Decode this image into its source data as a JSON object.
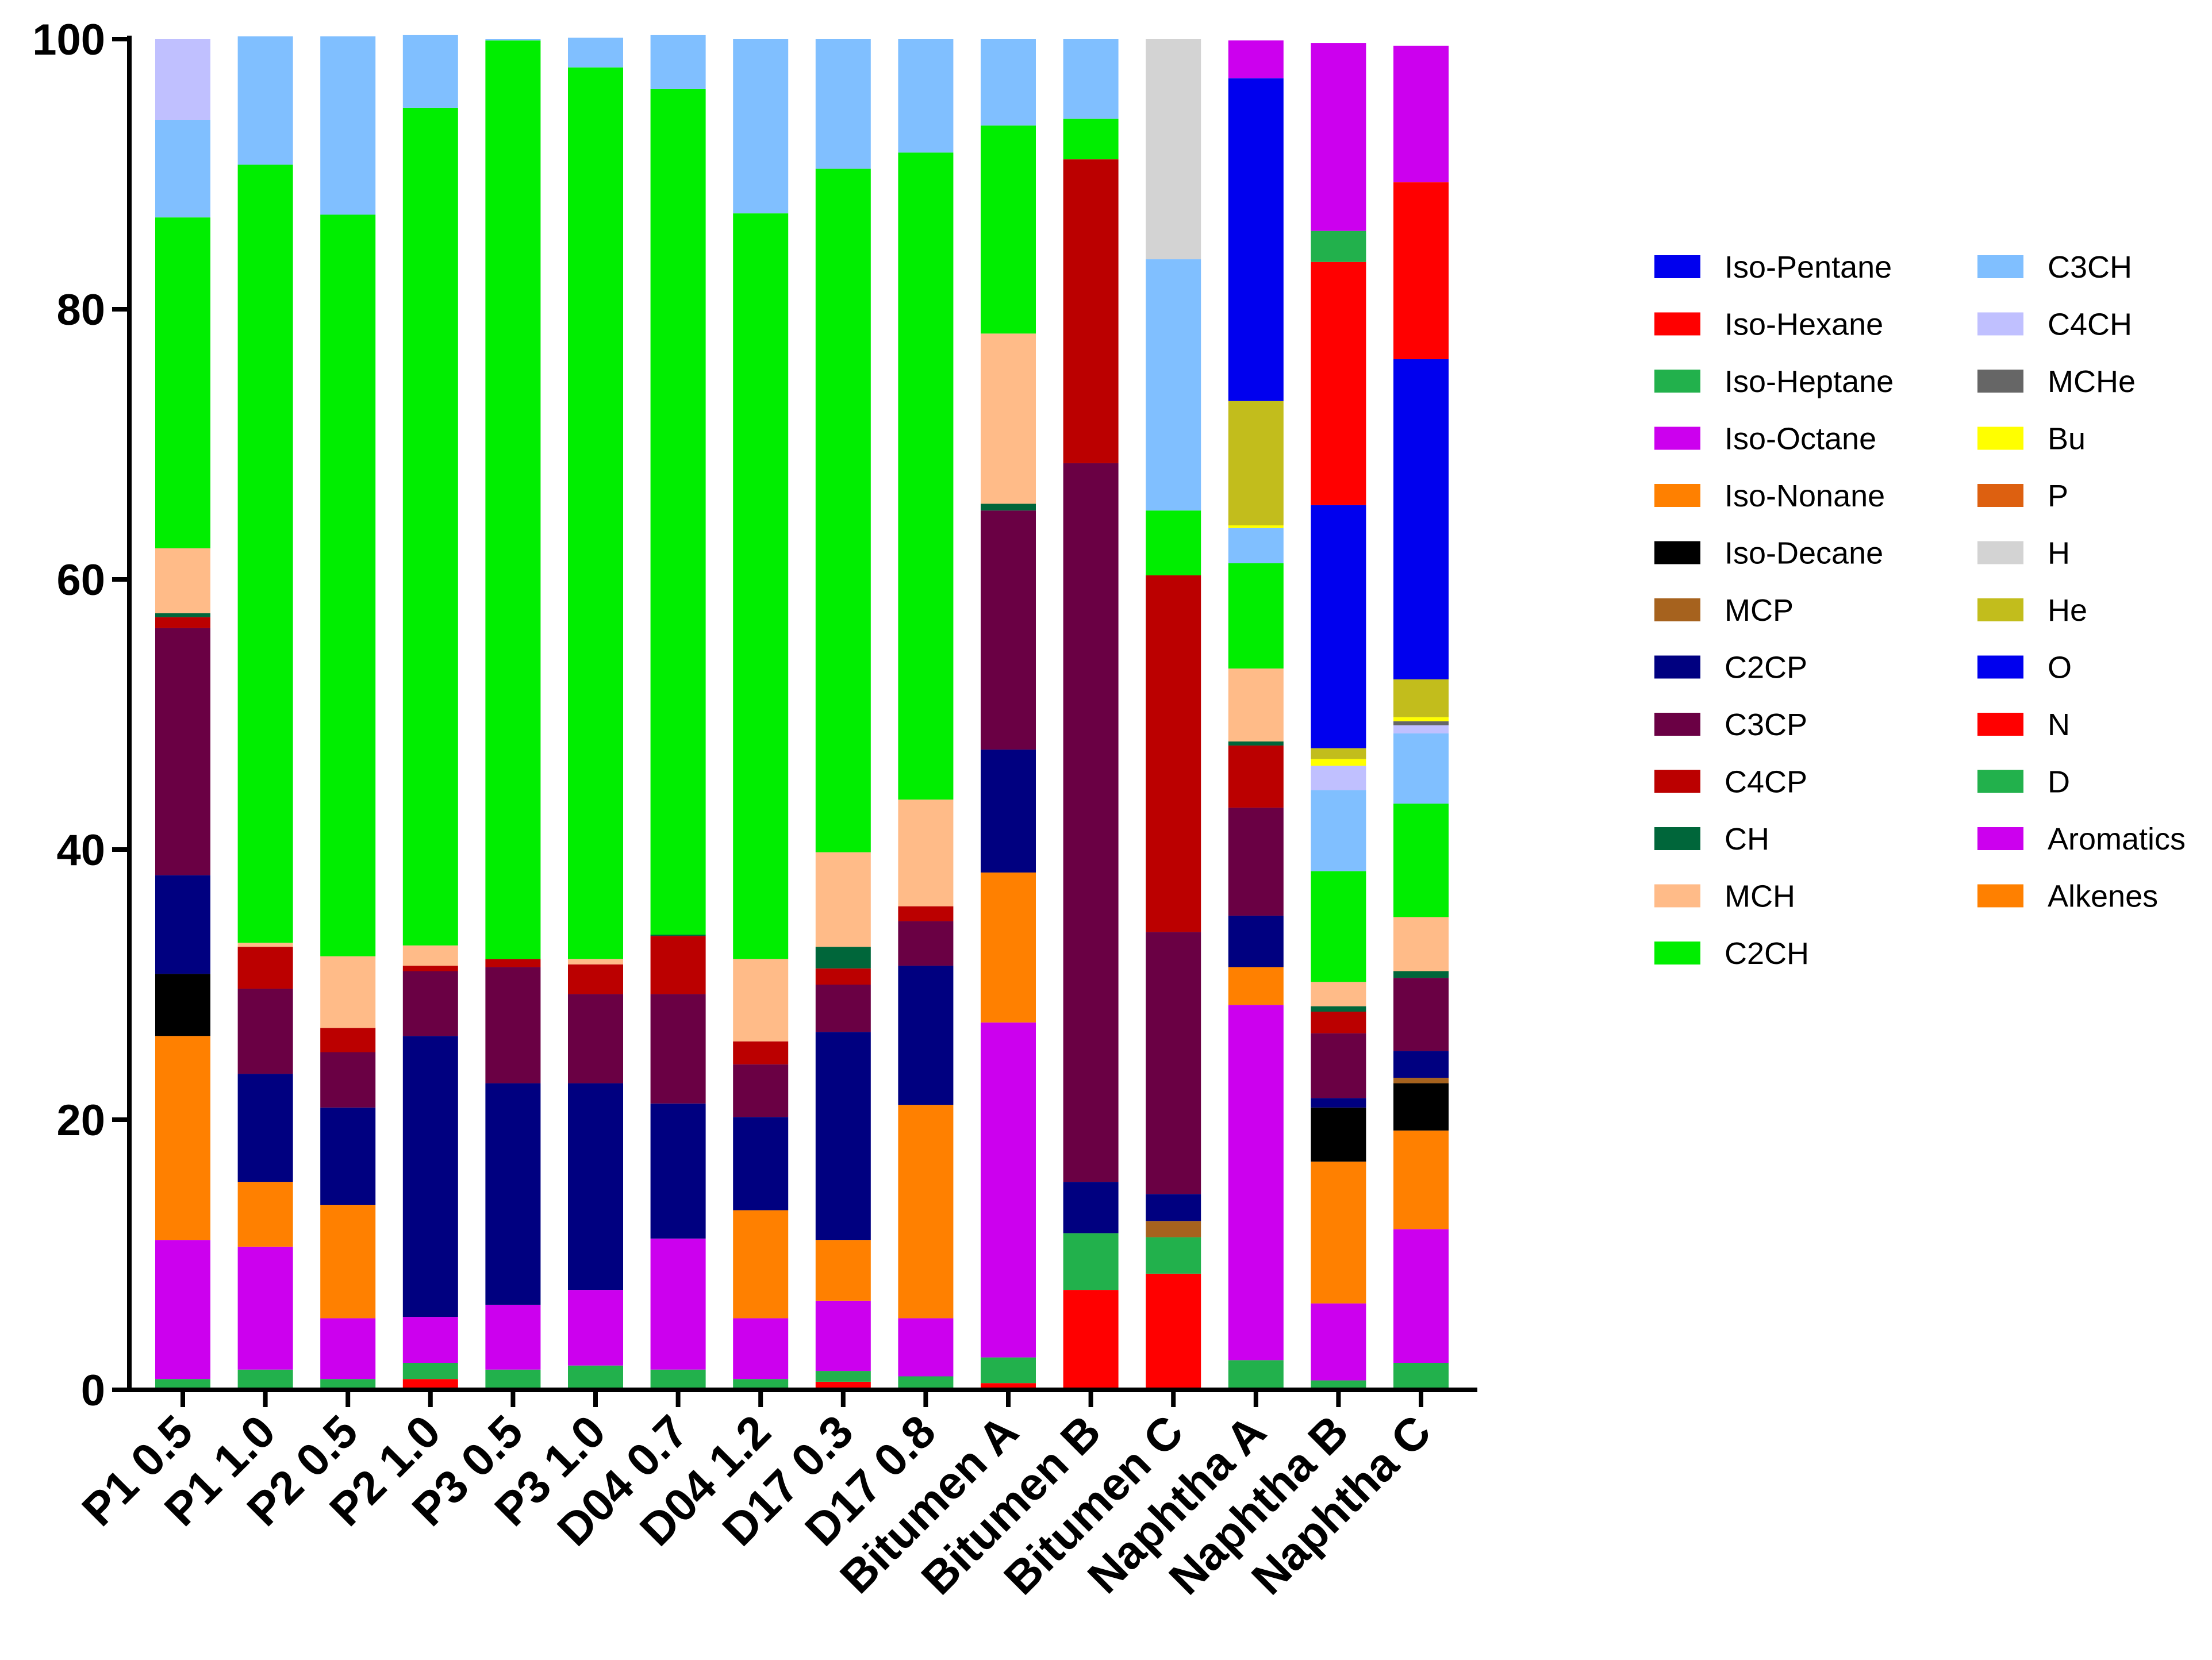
{
  "chart_data": {
    "type": "bar",
    "stacked": true,
    "title": "",
    "xlabel": "",
    "ylabel": "",
    "ylim": [
      0,
      100
    ],
    "yticks": [
      0,
      20,
      40,
      60,
      80,
      100
    ],
    "legend_position": "right",
    "categories": [
      "P1 0.5",
      "P1 1.0",
      "P2 0.5",
      "P2 1.0",
      "P3 0.5",
      "P3 1.0",
      "D04 0.7",
      "D04 1.2",
      "D17 0.3",
      "D17 0.8",
      "Bitumen A",
      "Bitumen B",
      "Bitumen C",
      "Naphtha A",
      "Naphtha B",
      "Naphtha C"
    ],
    "series": [
      {
        "name": "N",
        "color": "#ff0000",
        "values": [
          0,
          0,
          0,
          0.8,
          0,
          0,
          0,
          0,
          0.6,
          0,
          0.5,
          7.4,
          8.6,
          0,
          0,
          0
        ]
      },
      {
        "name": "D",
        "color": "#22b14c",
        "values": [
          0.8,
          1.5,
          0.8,
          1.2,
          1.5,
          1.8,
          1.5,
          0.8,
          0.8,
          1.0,
          1.9,
          4.2,
          2.7,
          2.2,
          0.7,
          2.0
        ]
      },
      {
        "name": "Aromatics",
        "color": "#cc00ee",
        "values": [
          10.3,
          9.1,
          4.5,
          3.4,
          4.8,
          5.6,
          9.7,
          4.5,
          5.2,
          4.3,
          24.8,
          0,
          0,
          26.3,
          5.7,
          9.9
        ]
      },
      {
        "name": "Alkenes",
        "color": "#ff8000",
        "values": [
          15.1,
          4.8,
          8.4,
          0,
          0,
          0,
          0,
          8.0,
          4.5,
          15.8,
          11.1,
          0,
          0,
          2.8,
          10.5,
          7.3
        ]
      },
      {
        "name": "Iso-Decane",
        "color": "#000000",
        "values": [
          4.6,
          0,
          0,
          0,
          0,
          0,
          0,
          0,
          0,
          0,
          0,
          0,
          0,
          0,
          4.0,
          3.5
        ]
      },
      {
        "name": "MCP",
        "color": "#a6621e",
        "values": [
          0,
          0,
          0,
          0,
          0,
          0,
          0,
          0,
          0,
          0,
          0,
          0,
          1.2,
          0,
          0,
          0.4
        ]
      },
      {
        "name": "C2CP",
        "color": "#000080",
        "values": [
          7.3,
          8.0,
          7.2,
          20.8,
          16.4,
          15.3,
          10.0,
          6.9,
          15.4,
          10.3,
          9.1,
          3.8,
          2.0,
          3.8,
          0.7,
          2.0
        ]
      },
      {
        "name": "C3CP",
        "color": "#6a0044",
        "values": [
          18.3,
          6.3,
          4.1,
          4.8,
          8.6,
          6.6,
          8.1,
          3.9,
          3.5,
          3.3,
          17.7,
          53.2,
          19.4,
          8.0,
          4.8,
          5.4
        ]
      },
      {
        "name": "C4CP",
        "color": "#bb0000",
        "values": [
          0.8,
          3.1,
          1.8,
          0.4,
          0.6,
          2.2,
          4.3,
          1.7,
          1.2,
          1.1,
          0,
          22.5,
          26.4,
          4.6,
          1.6,
          0
        ]
      },
      {
        "name": "CH",
        "color": "#00663a",
        "values": [
          0.3,
          0,
          0,
          0,
          0,
          0,
          0.1,
          0,
          1.6,
          0,
          0.5,
          0,
          0,
          0.3,
          0.4,
          0.5
        ]
      },
      {
        "name": "MCH",
        "color": "#ffbb88",
        "values": [
          4.8,
          0.3,
          5.3,
          1.5,
          0,
          0.4,
          0,
          6.1,
          7.0,
          7.9,
          12.6,
          0,
          0,
          5.4,
          1.8,
          4.0
        ]
      },
      {
        "name": "C2CH",
        "color": "#00ee00",
        "values": [
          24.5,
          57.6,
          54.9,
          62.0,
          68.0,
          66.0,
          62.6,
          55.2,
          50.6,
          47.9,
          15.4,
          3.0,
          4.8,
          7.8,
          8.2,
          8.4
        ]
      },
      {
        "name": "C3CH",
        "color": "#80bfff",
        "values": [
          7.2,
          9.5,
          13.2,
          5.4,
          0.1,
          2.2,
          4.0,
          12.9,
          9.6,
          8.4,
          6.4,
          5.9,
          18.6,
          2.6,
          6.0,
          5.2
        ]
      },
      {
        "name": "C4CH",
        "color": "#c0c0ff",
        "values": [
          6.0,
          0,
          0,
          0,
          0,
          0,
          0,
          0,
          0,
          0,
          0,
          0,
          0,
          0,
          1.8,
          0.6
        ]
      },
      {
        "name": "MCHe",
        "color": "#666666",
        "values": [
          0,
          0,
          0,
          0,
          0,
          0,
          0,
          0,
          0,
          0,
          0,
          0,
          0,
          0,
          0,
          0.3
        ]
      },
      {
        "name": "Bu",
        "color": "#ffff00",
        "values": [
          0,
          0,
          0,
          0,
          0,
          0,
          0,
          0,
          0,
          0,
          0,
          0,
          0,
          0.2,
          0.5,
          0.3
        ]
      },
      {
        "name": "P",
        "color": "#dd6010",
        "values": [
          0,
          0,
          0,
          0,
          0,
          0,
          0,
          0,
          0,
          0,
          0,
          0,
          0,
          0,
          0,
          0
        ]
      },
      {
        "name": "H",
        "color": "#d3d3d3",
        "values": [
          0,
          0,
          0,
          0,
          0,
          0,
          0,
          0,
          0,
          0,
          0,
          0,
          16.3,
          0,
          0,
          0
        ]
      },
      {
        "name": "He",
        "color": "#c2bd1c",
        "values": [
          0,
          0,
          0,
          0,
          0,
          0,
          0,
          0,
          0,
          0,
          0,
          0,
          0,
          9.2,
          0.8,
          2.8
        ]
      },
      {
        "name": "O",
        "color": "#0000ee",
        "values": [
          0,
          0,
          0,
          0,
          0,
          0,
          0,
          0,
          0,
          0,
          0,
          0,
          0,
          23.9,
          18.0,
          23.7
        ]
      },
      {
        "name": "Iso-Pentane",
        "color": "#0000ee",
        "values": [
          0,
          0,
          0,
          0,
          0,
          0,
          0,
          0,
          0,
          0,
          0,
          0,
          0,
          0,
          0,
          0
        ]
      },
      {
        "name": "Iso-Hexane",
        "color": "#ff0000",
        "values": [
          0,
          0,
          0,
          0,
          0,
          0,
          0,
          0,
          0,
          0,
          0,
          0,
          0,
          0,
          18.0,
          13.1
        ]
      },
      {
        "name": "Iso-Heptane",
        "color": "#22b14c",
        "values": [
          0,
          0,
          0,
          0,
          0,
          0,
          0,
          0,
          0,
          0,
          0,
          0,
          0,
          0,
          2.3,
          0
        ]
      },
      {
        "name": "Iso-Octane",
        "color": "#cc00ee",
        "values": [
          0,
          0,
          0,
          0,
          0,
          0,
          0,
          0,
          0,
          0,
          0,
          0,
          0,
          2.8,
          13.9,
          10.1
        ]
      },
      {
        "name": "Iso-Nonane",
        "color": "#ff8000",
        "values": [
          0,
          0,
          0,
          0,
          0,
          0,
          0,
          0,
          0,
          0,
          0,
          0,
          0,
          0,
          0,
          0
        ]
      }
    ],
    "stack_order": [
      "N",
      "D",
      "Aromatics",
      "Alkenes",
      "Iso-Decane",
      "MCP",
      "C2CP",
      "C3CP",
      "C4CP",
      "CH",
      "MCH",
      "C2CH",
      "C3CH",
      "C4CH",
      "MCHe",
      "Bu",
      "P",
      "H",
      "He",
      "O",
      "Iso-Hexane",
      "Iso-Heptane",
      "Iso-Octane",
      "Iso-Pentane",
      "Iso-Nonane"
    ],
    "legend": [
      {
        "name": "Iso-Pentane",
        "color": "#0000ee"
      },
      {
        "name": "Iso-Hexane",
        "color": "#ff0000"
      },
      {
        "name": "Iso-Heptane",
        "color": "#22b14c"
      },
      {
        "name": "Iso-Octane",
        "color": "#cc00ee"
      },
      {
        "name": "Iso-Nonane",
        "color": "#ff8000"
      },
      {
        "name": "Iso-Decane",
        "color": "#000000"
      },
      {
        "name": "MCP",
        "color": "#a6621e"
      },
      {
        "name": "C2CP",
        "color": "#000080"
      },
      {
        "name": "C3CP",
        "color": "#6a0044"
      },
      {
        "name": "C4CP",
        "color": "#bb0000"
      },
      {
        "name": "CH",
        "color": "#00663a"
      },
      {
        "name": "MCH",
        "color": "#ffbb88"
      },
      {
        "name": "C2CH",
        "color": "#00ee00"
      },
      {
        "name": "C3CH",
        "color": "#80bfff"
      },
      {
        "name": "C4CH",
        "color": "#c0c0ff"
      },
      {
        "name": "MCHe",
        "color": "#666666"
      },
      {
        "name": "Bu",
        "color": "#ffff00"
      },
      {
        "name": "P",
        "color": "#dd6010"
      },
      {
        "name": "H",
        "color": "#d3d3d3"
      },
      {
        "name": "He",
        "color": "#c2bd1c"
      },
      {
        "name": "O",
        "color": "#0000ee"
      },
      {
        "name": "N",
        "color": "#ff0000"
      },
      {
        "name": "D",
        "color": "#22b14c"
      },
      {
        "name": "Aromatics",
        "color": "#cc00ee"
      },
      {
        "name": "Alkenes",
        "color": "#ff8000"
      }
    ]
  }
}
